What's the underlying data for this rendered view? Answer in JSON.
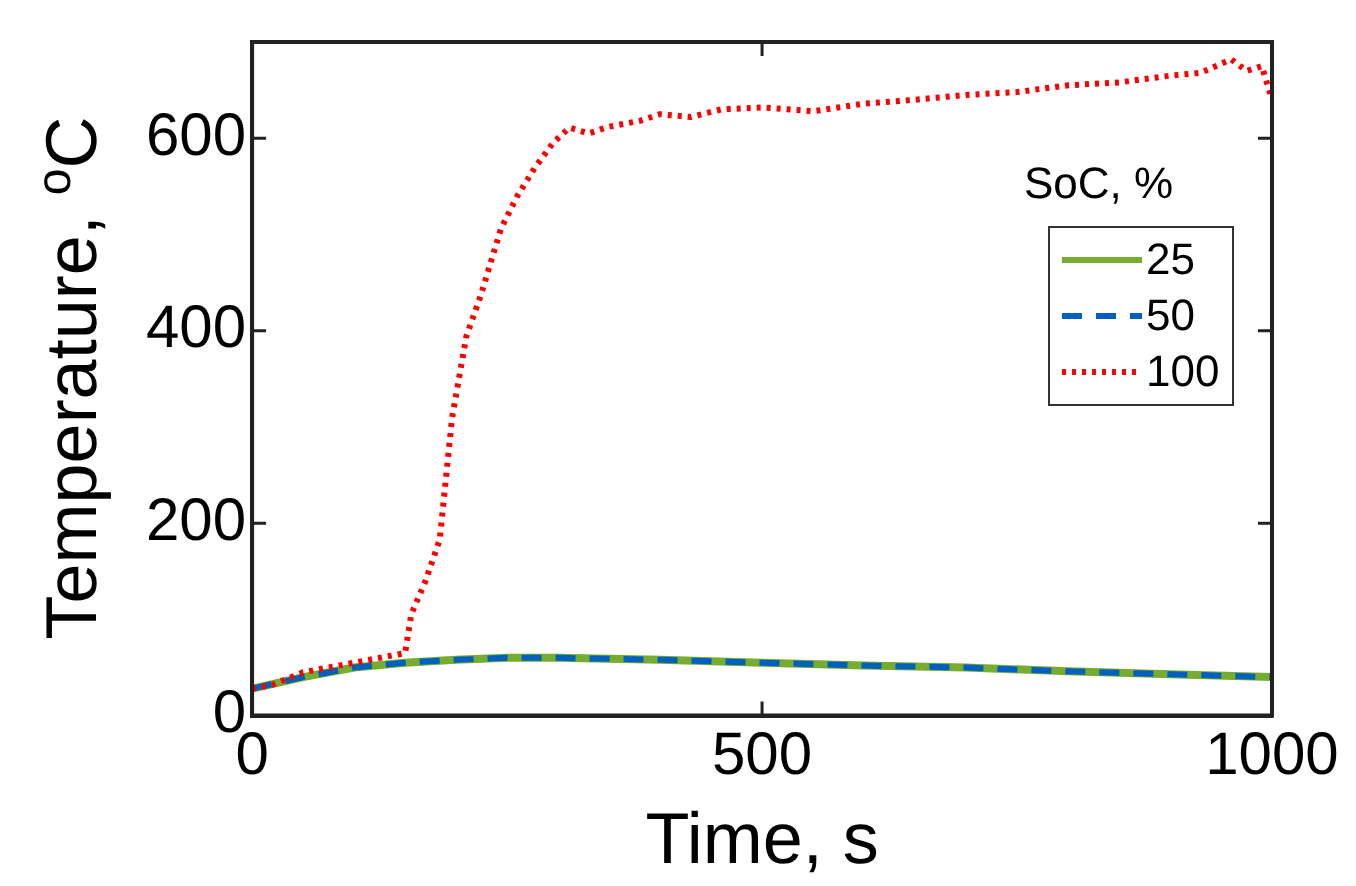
{
  "chart_data": {
    "type": "line",
    "xlabel": "Time, s",
    "ylabel": "Temperature, $^{o}$C",
    "legend_title": "SoC, %",
    "legend": "right",
    "grid": false,
    "marker": "none",
    "xlim": [
      0,
      1000
    ],
    "xticks": [
      0,
      500,
      1000
    ],
    "ylim": [
      0,
      700
    ],
    "yticks": [
      0,
      200,
      400,
      600
    ],
    "series": [
      {
        "name": "25",
        "color": "#77ac30",
        "line_style": "solid",
        "x": [
          0,
          50,
          100,
          150,
          200,
          250,
          300,
          400,
          500,
          600,
          700,
          800,
          900,
          1000
        ],
        "values": [
          28,
          40,
          50,
          55,
          58,
          60,
          60,
          58,
          55,
          52,
          50,
          46,
          43,
          40
        ]
      },
      {
        "name": "50",
        "color": "#0060c0",
        "line_style": "dashed",
        "x": [
          0,
          50,
          100,
          150,
          200,
          250,
          300,
          400,
          500,
          600,
          700,
          800,
          900,
          1000
        ],
        "values": [
          28,
          40,
          50,
          55,
          58,
          60,
          60,
          58,
          55,
          52,
          50,
          46,
          43,
          40
        ]
      },
      {
        "name": "100",
        "color": "#ff0000",
        "line_style": "dotted",
        "x": [
          0,
          20,
          50,
          100,
          150,
          156,
          170,
          184,
          196,
          210,
          224,
          244,
          260,
          277,
          295,
          311,
          330,
          350,
          380,
          400,
          430,
          460,
          500,
          550,
          600,
          650,
          700,
          750,
          800,
          850,
          900,
          930,
          960,
          975,
          990,
          1000
        ],
        "values": [
          28,
          32,
          45,
          55,
          65,
          105,
          140,
          183,
          309,
          394,
          436,
          506,
          540,
          569,
          595,
          611,
          605,
          612,
          618,
          625,
          622,
          630,
          632,
          628,
          636,
          640,
          645,
          648,
          655,
          658,
          665,
          668,
          682,
          670,
          675,
          640
        ]
      }
    ]
  }
}
